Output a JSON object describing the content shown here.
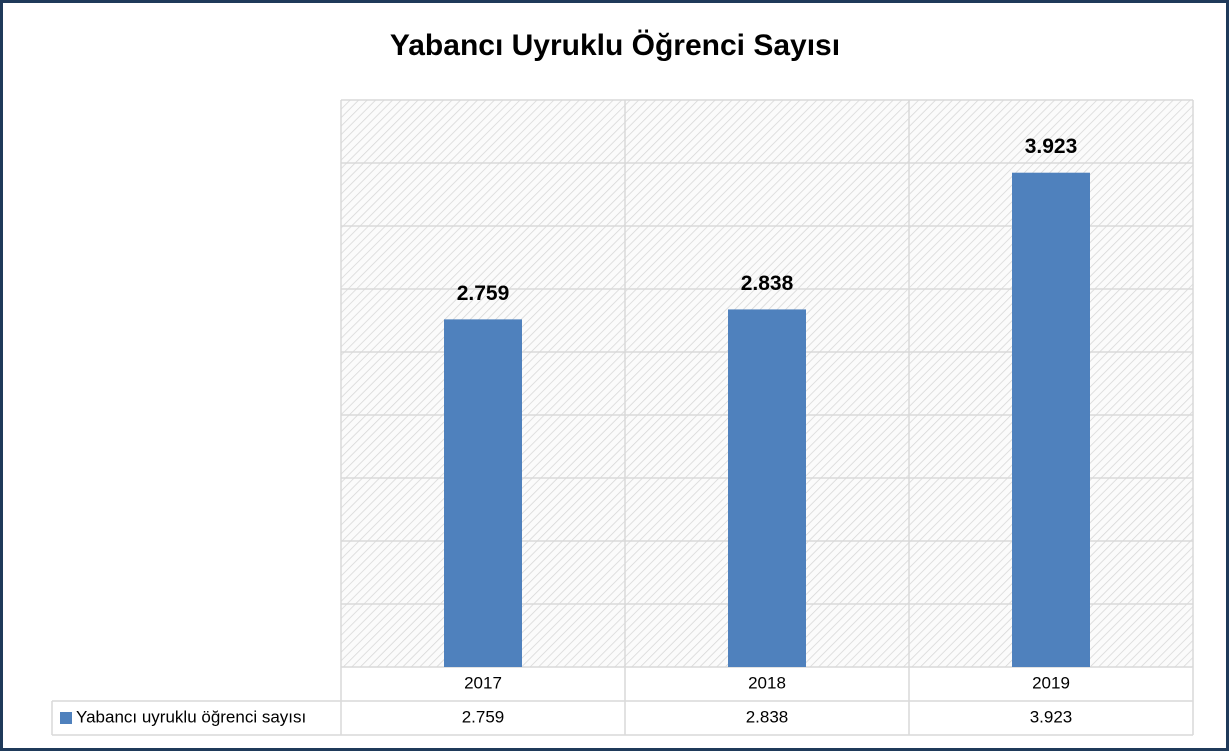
{
  "chart_data": {
    "type": "bar",
    "title": "Yabancı Uyruklu Öğrenci Sayısı",
    "categories": [
      "2017",
      "2018",
      "2019"
    ],
    "series": [
      {
        "name": "Yabancı uyruklu öğrenci sayısı",
        "color": "#4f81bd",
        "values": [
          2759,
          2838,
          3923
        ],
        "value_labels": [
          "2.759",
          "2.838",
          "3.923"
        ]
      }
    ],
    "ylim": [
      0,
      4500
    ],
    "yticks": [
      0,
      500,
      1000,
      1500,
      2000,
      2500,
      3000,
      3500,
      4000,
      4500
    ],
    "grid": true,
    "data_table": true
  }
}
